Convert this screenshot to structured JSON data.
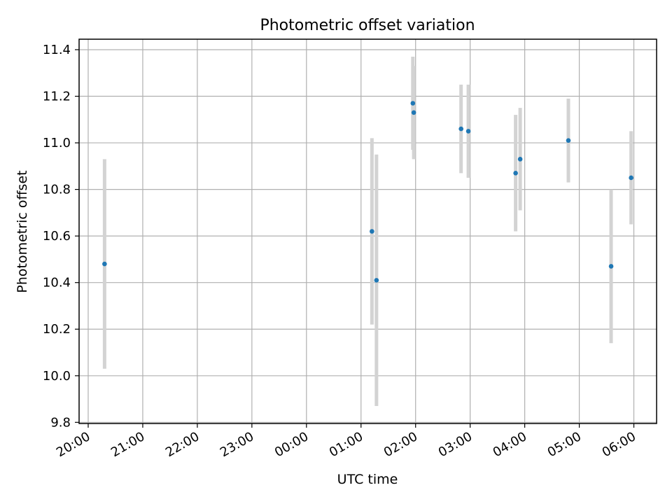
{
  "chart_data": {
    "type": "scatter",
    "title": "Photometric offset variation",
    "xlabel": "UTC time",
    "ylabel": "Photometric offset",
    "x_ticks": [
      "20:00",
      "21:00",
      "22:00",
      "23:00",
      "00:00",
      "01:00",
      "02:00",
      "03:00",
      "04:00",
      "05:00",
      "06:00"
    ],
    "y_ticks": [
      "9.8",
      "10.0",
      "10.2",
      "10.4",
      "10.6",
      "10.8",
      "11.0",
      "11.2",
      "11.4"
    ],
    "xlim": [
      "19:50",
      "06:25"
    ],
    "ylim": [
      9.795,
      11.445
    ],
    "grid": true,
    "colors": {
      "point": "#1f77b4",
      "errorbar": "#d3d3d3",
      "grid": "#b0b0b0"
    },
    "series": [
      {
        "points": [
          {
            "x": "20:18",
            "y": 10.48,
            "err": 0.45
          },
          {
            "x": "01:12",
            "y": 10.62,
            "err": 0.4
          },
          {
            "x": "01:17",
            "y": 10.41,
            "err": 0.54
          },
          {
            "x": "01:57",
            "y": 11.17,
            "err": 0.2
          },
          {
            "x": "01:58",
            "y": 11.13,
            "err": 0.2
          },
          {
            "x": "02:50",
            "y": 11.06,
            "err": 0.19
          },
          {
            "x": "02:58",
            "y": 11.05,
            "err": 0.2
          },
          {
            "x": "03:50",
            "y": 10.87,
            "err": 0.25
          },
          {
            "x": "03:55",
            "y": 10.93,
            "err": 0.22
          },
          {
            "x": "04:48",
            "y": 11.01,
            "err": 0.18
          },
          {
            "x": "05:35",
            "y": 10.47,
            "err": 0.33
          },
          {
            "x": "05:57",
            "y": 10.85,
            "err": 0.2
          }
        ]
      }
    ]
  }
}
